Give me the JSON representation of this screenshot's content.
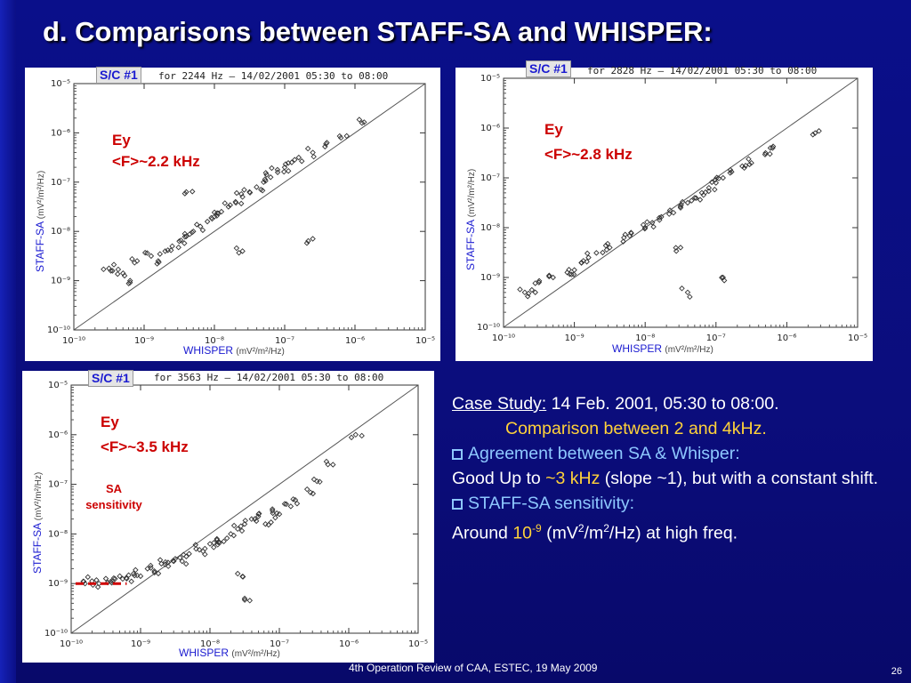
{
  "slide": {
    "title": "d. Comparisons between STAFF-SA and WHISPER:",
    "footer": "4th Operation Review of CAA, ESTEC, 19 May 2009",
    "page_number": "26"
  },
  "panels": [
    {
      "sc_label": "S/C #1",
      "header": "for 2244 Hz – 14/02/2001 05:30 to 08:00",
      "annotation_1": "Ey",
      "annotation_2": "<F>~2.2 kHz",
      "ylabel": "STAFF-SA",
      "xlabel": "WHISPER",
      "unit": "(mV²/m²/Hz)"
    },
    {
      "sc_label": "S/C #1",
      "header": "for 2828 Hz – 14/02/2001 05:30 to 08:00",
      "annotation_1": "Ey",
      "annotation_2": "<F>~2.8 kHz",
      "ylabel": "STAFF-SA",
      "xlabel": "WHISPER",
      "unit": "(mV²/m²/Hz)"
    },
    {
      "sc_label": "S/C #1",
      "header": "for 3563 Hz – 14/02/2001 05:30 to 08:00",
      "annotation_1": "Ey",
      "annotation_2": "<F>~3.5 kHz",
      "sensitivity_1": "SA",
      "sensitivity_2": "sensitivity",
      "ylabel": "STAFF-SA",
      "xlabel": "WHISPER",
      "unit": "(mV²/m²/Hz)"
    }
  ],
  "text": {
    "case_label": "Case Study:",
    "case_value": "14 Feb. 2001, 05:30 to 08:00.",
    "comparison": "Comparison between 2 and 4kHz.",
    "agreement": "Agreement between  SA & Whisper:",
    "good_up_pre": "Good Up to ",
    "good_up_val": "~3 kHz",
    "good_up_post": " (slope ~1), but with a constant shift.",
    "sensitivity_head": "STAFF-SA sensitivity:",
    "around": "Around ",
    "around_base": "10",
    "around_exp": "-9",
    "unit_a": " (mV",
    "unit_b": "/m",
    "unit_c": "/Hz) at high freq.",
    "sup_2": "2"
  },
  "colors": {
    "background": "#0b0d7c",
    "highlight": "#ffd23a",
    "accent": "#8ec8ff",
    "annotation": "#cc0000"
  },
  "chart_data": [
    {
      "type": "scatter",
      "title": "for 2244 Hz – 14/02/2001 05:30 to 08:00",
      "xlabel": "WHISPER (mV²/m²/Hz)",
      "ylabel": "STAFF-SA (mV²/m²/Hz)",
      "x_scale": "log",
      "y_scale": "log",
      "xlim": [
        1e-10,
        1e-05
      ],
      "ylim": [
        1e-10,
        1e-05
      ],
      "x_ticks": [
        "10⁻¹⁰",
        "10⁻⁹",
        "10⁻⁸",
        "10⁻⁷",
        "10⁻⁶",
        "10⁻⁵"
      ],
      "y_ticks": [
        "10⁻¹⁰",
        "10⁻⁹",
        "10⁻⁸",
        "10⁻⁷",
        "10⁻⁶",
        "10⁻⁵"
      ],
      "reference_line": "y = x",
      "points_log10": [
        [
          -9.5,
          -8.75
        ],
        [
          -9.45,
          -8.8
        ],
        [
          -9.3,
          -8.85
        ],
        [
          -9.2,
          -9.0
        ],
        [
          -9.1,
          -8.6
        ],
        [
          -8.9,
          -8.5
        ],
        [
          -8.8,
          -8.6
        ],
        [
          -8.7,
          -8.4
        ],
        [
          -8.6,
          -8.3
        ],
        [
          -8.5,
          -8.2
        ],
        [
          -8.4,
          -8.1
        ],
        [
          -8.3,
          -8.0
        ],
        [
          -8.2,
          -7.9
        ],
        [
          -8.1,
          -7.8
        ],
        [
          -8.0,
          -7.7
        ],
        [
          -7.9,
          -7.6
        ],
        [
          -7.8,
          -7.5
        ],
        [
          -7.7,
          -7.4
        ],
        [
          -7.6,
          -7.3
        ],
        [
          -7.5,
          -7.2
        ],
        [
          -7.4,
          -7.1
        ],
        [
          -7.3,
          -7.0
        ],
        [
          -7.2,
          -6.9
        ],
        [
          -7.1,
          -6.8
        ],
        [
          -7.0,
          -6.7
        ],
        [
          -6.9,
          -6.6
        ],
        [
          -6.8,
          -6.5
        ],
        [
          -6.6,
          -6.4
        ],
        [
          -6.4,
          -6.2
        ],
        [
          -6.2,
          -6.1
        ],
        [
          -5.9,
          -5.8
        ],
        [
          -7.6,
          -8.4
        ],
        [
          -6.6,
          -8.15
        ],
        [
          -8.4,
          -7.2
        ]
      ],
      "point_cluster_note": ""
    },
    {
      "type": "scatter",
      "title": "for 2828 Hz – 14/02/2001 05:30 to 08:00",
      "xlabel": "WHISPER (mV²/m²/Hz)",
      "ylabel": "STAFF-SA (mV²/m²/Hz)",
      "x_scale": "log",
      "y_scale": "log",
      "xlim": [
        1e-10,
        1e-05
      ],
      "ylim": [
        1e-10,
        1e-05
      ],
      "x_ticks": [
        "10⁻¹⁰",
        "10⁻⁹",
        "10⁻⁸",
        "10⁻⁷",
        "10⁻⁶",
        "10⁻⁵"
      ],
      "y_ticks": [
        "10⁻¹⁰",
        "10⁻⁹",
        "10⁻⁸",
        "10⁻⁷",
        "10⁻⁶",
        "10⁻⁵"
      ],
      "reference_line": "y = x",
      "points_log10": [
        [
          -9.7,
          -9.3
        ],
        [
          -9.6,
          -9.25
        ],
        [
          -9.5,
          -9.1
        ],
        [
          -9.3,
          -9.0
        ],
        [
          -9.1,
          -8.9
        ],
        [
          -9.0,
          -8.85
        ],
        [
          -8.9,
          -8.7
        ],
        [
          -8.8,
          -8.6
        ],
        [
          -8.6,
          -8.5
        ],
        [
          -8.5,
          -8.4
        ],
        [
          -8.3,
          -8.2
        ],
        [
          -8.2,
          -8.1
        ],
        [
          -8.0,
          -8.0
        ],
        [
          -7.9,
          -7.9
        ],
        [
          -7.8,
          -7.8
        ],
        [
          -7.6,
          -7.7
        ],
        [
          -7.5,
          -7.6
        ],
        [
          -7.4,
          -7.5
        ],
        [
          -7.3,
          -7.4
        ],
        [
          -7.2,
          -7.3
        ],
        [
          -7.1,
          -7.2
        ],
        [
          -7.0,
          -7.1
        ],
        [
          -6.9,
          -7.0
        ],
        [
          -6.8,
          -6.9
        ],
        [
          -6.6,
          -6.8
        ],
        [
          -6.5,
          -6.7
        ],
        [
          -6.3,
          -6.5
        ],
        [
          -6.2,
          -6.4
        ],
        [
          -5.6,
          -6.1
        ],
        [
          -7.5,
          -8.4
        ],
        [
          -7.4,
          -9.3
        ],
        [
          -6.9,
          -9.0
        ]
      ]
    },
    {
      "type": "scatter",
      "title": "for 3563 Hz – 14/02/2001 05:30 to 08:00",
      "xlabel": "WHISPER (mV²/m²/Hz)",
      "ylabel": "STAFF-SA (mV²/m²/Hz)",
      "x_scale": "log",
      "y_scale": "log",
      "xlim": [
        1e-10,
        1e-05
      ],
      "ylim": [
        1e-10,
        1e-05
      ],
      "x_ticks": [
        "10⁻¹⁰",
        "10⁻⁹",
        "10⁻⁸",
        "10⁻⁷",
        "10⁻⁶",
        "10⁻⁵"
      ],
      "y_ticks": [
        "10⁻¹⁰",
        "10⁻⁹",
        "10⁻⁸",
        "10⁻⁷",
        "10⁻⁶",
        "10⁻⁵"
      ],
      "reference_line": "y = x",
      "sensitivity_level_log10": -9,
      "points_log10": [
        [
          -9.8,
          -9.0
        ],
        [
          -9.7,
          -8.95
        ],
        [
          -9.6,
          -9.0
        ],
        [
          -9.5,
          -8.9
        ],
        [
          -9.4,
          -8.95
        ],
        [
          -9.3,
          -8.85
        ],
        [
          -9.2,
          -8.9
        ],
        [
          -9.1,
          -8.8
        ],
        [
          -9.0,
          -8.85
        ],
        [
          -8.9,
          -8.7
        ],
        [
          -8.8,
          -8.75
        ],
        [
          -8.7,
          -8.6
        ],
        [
          -8.6,
          -8.65
        ],
        [
          -8.5,
          -8.5
        ],
        [
          -8.4,
          -8.55
        ],
        [
          -8.3,
          -8.4
        ],
        [
          -8.2,
          -8.3
        ],
        [
          -8.1,
          -8.35
        ],
        [
          -8.0,
          -8.2
        ],
        [
          -7.9,
          -8.1
        ],
        [
          -7.8,
          -8.15
        ],
        [
          -7.7,
          -8.0
        ],
        [
          -7.6,
          -7.9
        ],
        [
          -7.5,
          -7.8
        ],
        [
          -7.4,
          -7.7
        ],
        [
          -7.3,
          -7.6
        ],
        [
          -7.2,
          -7.8
        ],
        [
          -7.1,
          -7.5
        ],
        [
          -7.0,
          -7.6
        ],
        [
          -6.9,
          -7.4
        ],
        [
          -6.8,
          -7.3
        ],
        [
          -6.6,
          -7.1
        ],
        [
          -6.5,
          -6.9
        ],
        [
          -6.3,
          -6.6
        ],
        [
          -5.9,
          -6.0
        ],
        [
          -7.5,
          -9.3
        ],
        [
          -7.6,
          -8.8
        ]
      ]
    }
  ]
}
